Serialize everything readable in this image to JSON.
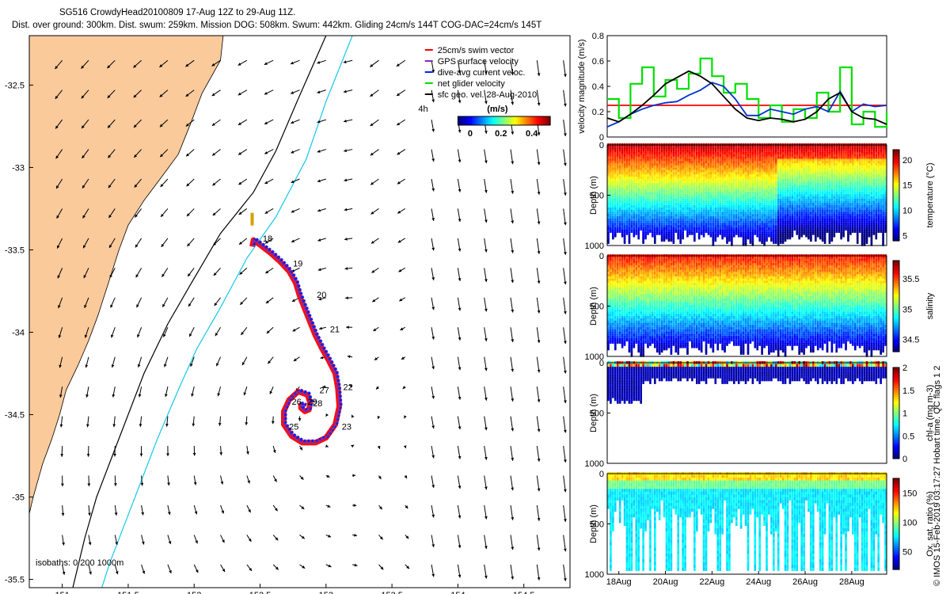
{
  "header": {
    "line1": "SG516 CrowdyHead20100809 17-Aug 12Z to 29-Aug 11Z.",
    "line2": "Dist. over ground: 300km. Dist. swum: 259km. Mission DOG: 508km. Swum: 442km. Gliding 24cm/s 144T COG-DAC=24cm/s 145T"
  },
  "colors": {
    "land": "#fbca9b",
    "isobath_200": "#000000",
    "isobath_1000": "#12c8e8",
    "swim": "#ff0000",
    "gps": "#7b2fb0",
    "dac": "#0022ff",
    "net": "#00e000",
    "sfc_arrow": "#000000"
  },
  "chart_data": [
    {
      "id": "map",
      "type": "scatter",
      "title": "",
      "xlim": [
        150.75,
        154.85
      ],
      "ylim": [
        -35.55,
        -32.2
      ],
      "x_ticks": [
        151,
        151.5,
        152,
        152.5,
        153,
        153.5,
        154,
        154.5
      ],
      "x_tick_labels": [
        "151",
        "151.5",
        "152",
        "152.5",
        "153",
        "153.5",
        "154",
        "154.5"
      ],
      "y_ticks": [
        -32.5,
        -33,
        -33.5,
        -34,
        -34.5,
        -35,
        -35.5
      ],
      "y_tick_labels": [
        "-32.5",
        "-33",
        "-33.5",
        "-34",
        "-34.5",
        "-35",
        "-35.5"
      ],
      "legend": {
        "placement": "top-right",
        "entries": [
          "25cm/s swim vector",
          "GPS surface velocity",
          "dive-avg current veloc.",
          "net glider velocity",
          "sfc geo. vel. 28-Aug-2010"
        ],
        "extra_label": "4h"
      },
      "colorbar": {
        "label": "(m/s)",
        "ticks": [
          0,
          0.2,
          0.4
        ],
        "tick_labels": [
          "0",
          "0.2",
          "0.4"
        ],
        "range": [
          -0.08,
          0.52
        ]
      },
      "isobath_note": "isobaths: 0  200  1000m",
      "track": {
        "lon": [
          152.44,
          152.45,
          152.5,
          152.58,
          152.65,
          152.72,
          152.77,
          152.8,
          152.84,
          152.88,
          152.92,
          152.97,
          153.02,
          153.07,
          153.09,
          153.1,
          153.07,
          153.0,
          152.92,
          152.82,
          152.74,
          152.68,
          152.68,
          152.72,
          152.79,
          152.86,
          152.88,
          152.87,
          152.84,
          152.81,
          152.81,
          152.84
        ],
        "lat": [
          -33.48,
          -33.44,
          -33.47,
          -33.52,
          -33.57,
          -33.63,
          -33.7,
          -33.78,
          -33.86,
          -33.94,
          -34.02,
          -34.1,
          -34.17,
          -34.25,
          -34.34,
          -34.45,
          -34.56,
          -34.64,
          -34.67,
          -34.67,
          -34.63,
          -34.56,
          -34.48,
          -34.41,
          -34.36,
          -34.38,
          -34.43,
          -34.47,
          -34.48,
          -34.46,
          -34.44,
          -34.45
        ]
      },
      "day_labels": [
        {
          "text": "18",
          "lon": 152.52,
          "lat": -33.45
        },
        {
          "text": "19",
          "lon": 152.75,
          "lat": -33.6
        },
        {
          "text": "20",
          "lon": 152.93,
          "lat": -33.79
        },
        {
          "text": "21",
          "lon": 153.03,
          "lat": -34.0
        },
        {
          "text": "22",
          "lon": 153.13,
          "lat": -34.35
        },
        {
          "text": "23",
          "lon": 153.12,
          "lat": -34.59
        },
        {
          "text": "25",
          "lon": 152.72,
          "lat": -34.59
        },
        {
          "text": "26",
          "lon": 152.74,
          "lat": -34.44
        },
        {
          "text": "27",
          "lon": 152.95,
          "lat": -34.37
        },
        {
          "text": "28",
          "lon": 152.9,
          "lat": -34.45
        },
        {
          "text": "29",
          "lon": 152.86,
          "lat": -34.44
        }
      ]
    },
    {
      "id": "velocity",
      "type": "line",
      "xlim": [
        17.5,
        29.5
      ],
      "ylim": [
        0,
        0.8
      ],
      "ylabel": "velocity magnitude (m/s)",
      "y_ticks": [
        0,
        0.2,
        0.4,
        0.6,
        0.8
      ],
      "y_tick_labels": [
        "0",
        "0.2",
        "0.4",
        "0.6",
        "0.8"
      ],
      "series": [
        {
          "color": "#ff0000",
          "x": [
            17.5,
            29.5
          ],
          "y": [
            0.25,
            0.25
          ]
        },
        {
          "color": "#00e000",
          "x": [
            17.5,
            18.0,
            18.5,
            19.0,
            19.5,
            20.0,
            20.5,
            21.0,
            21.5,
            22.0,
            22.5,
            23.0,
            23.5,
            24.0,
            24.5,
            25.0,
            25.5,
            26.0,
            26.5,
            27.0,
            27.5,
            28.0,
            28.5,
            29.0,
            29.5
          ],
          "y": [
            0.3,
            0.15,
            0.42,
            0.55,
            0.32,
            0.45,
            0.38,
            0.5,
            0.62,
            0.48,
            0.35,
            0.42,
            0.3,
            0.15,
            0.25,
            0.12,
            0.22,
            0.15,
            0.35,
            0.2,
            0.55,
            0.1,
            0.2,
            0.08,
            0.2
          ]
        },
        {
          "color": "#0033cc",
          "x": [
            17.5,
            18.0,
            18.5,
            19.0,
            19.5,
            20.0,
            20.5,
            21.0,
            21.5,
            22.0,
            22.5,
            23.0,
            23.5,
            24.0,
            24.5,
            25.0,
            25.5,
            26.0,
            26.5,
            27.0,
            27.5,
            28.0,
            28.5,
            29.0,
            29.5
          ],
          "y": [
            0.08,
            0.12,
            0.18,
            0.22,
            0.25,
            0.27,
            0.28,
            0.33,
            0.37,
            0.43,
            0.4,
            0.3,
            0.17,
            0.17,
            0.22,
            0.2,
            0.18,
            0.22,
            0.24,
            0.2,
            0.36,
            0.2,
            0.26,
            0.24,
            0.25
          ]
        },
        {
          "color": "#000000",
          "x": [
            17.5,
            18.0,
            18.5,
            19.0,
            19.5,
            20.0,
            20.5,
            21.0,
            21.5,
            22.0,
            22.5,
            23.0,
            23.5,
            24.0,
            24.5,
            25.0,
            25.5,
            26.0,
            26.5,
            27.0,
            27.5,
            28.0,
            28.5,
            29.0,
            29.5
          ],
          "y": [
            0.15,
            0.12,
            0.18,
            0.25,
            0.33,
            0.42,
            0.47,
            0.52,
            0.48,
            0.42,
            0.32,
            0.22,
            0.15,
            0.13,
            0.15,
            0.14,
            0.12,
            0.14,
            0.2,
            0.3,
            0.35,
            0.2,
            0.15,
            0.14,
            0.1
          ]
        }
      ]
    },
    {
      "id": "temperature",
      "type": "heatmap",
      "ylabel": "Depth (m)",
      "ylim": [
        0,
        1000
      ],
      "y_ticks": [
        0,
        500,
        1000
      ],
      "y_tick_labels": [
        "0",
        "500",
        "1000"
      ],
      "colorbar": {
        "label": "temperature (°C)",
        "range": [
          4,
          22
        ],
        "ticks": [
          5,
          10,
          15,
          20
        ],
        "tick_labels": [
          "5",
          "10",
          "15",
          "20"
        ]
      }
    },
    {
      "id": "salinity",
      "type": "heatmap",
      "ylabel": "Depth (m)",
      "ylim": [
        0,
        1000
      ],
      "y_ticks": [
        0,
        500,
        1000
      ],
      "y_tick_labels": [
        "0",
        "500",
        "1000"
      ],
      "colorbar": {
        "label": "salinity",
        "range": [
          34.3,
          35.8
        ],
        "ticks": [
          34.5,
          35,
          35.5
        ],
        "tick_labels": [
          "34.5",
          "35",
          "35.5"
        ]
      }
    },
    {
      "id": "chla",
      "type": "heatmap",
      "ylabel": "Depth (m)",
      "ylim": [
        0,
        1000
      ],
      "y_ticks": [
        0,
        500,
        1000
      ],
      "y_tick_labels": [
        "0",
        "500",
        "1000"
      ],
      "colorbar": {
        "label": "chl-a (mg m-3)",
        "range": [
          0,
          2
        ],
        "ticks": [
          0,
          0.5,
          1,
          1.5,
          2
        ],
        "tick_labels": [
          "0",
          "0.5",
          "1",
          "1.5",
          "2"
        ]
      }
    },
    {
      "id": "oxygen",
      "type": "heatmap",
      "ylabel": "Depth (m)",
      "ylim": [
        0,
        1000
      ],
      "xlabel": "",
      "x_tick_labels": [
        "18Aug",
        "20Aug",
        "22Aug",
        "24Aug",
        "26Aug",
        "28Aug"
      ],
      "x_ticks": [
        18,
        20,
        22,
        24,
        26,
        28
      ],
      "xlim": [
        17.5,
        29.5
      ],
      "y_ticks": [
        0,
        500,
        1000
      ],
      "y_tick_labels": [
        "0",
        "500",
        "1000"
      ],
      "colorbar": {
        "label": "Ox. sat. ratio (%)",
        "range": [
          20,
          175
        ],
        "ticks": [
          50,
          100,
          150
        ],
        "tick_labels": [
          "50",
          "100",
          "150"
        ]
      }
    }
  ],
  "side_note": "© IMOS 15-Feb-2019 03:17:27 Hobart time. QC flags 1  2"
}
